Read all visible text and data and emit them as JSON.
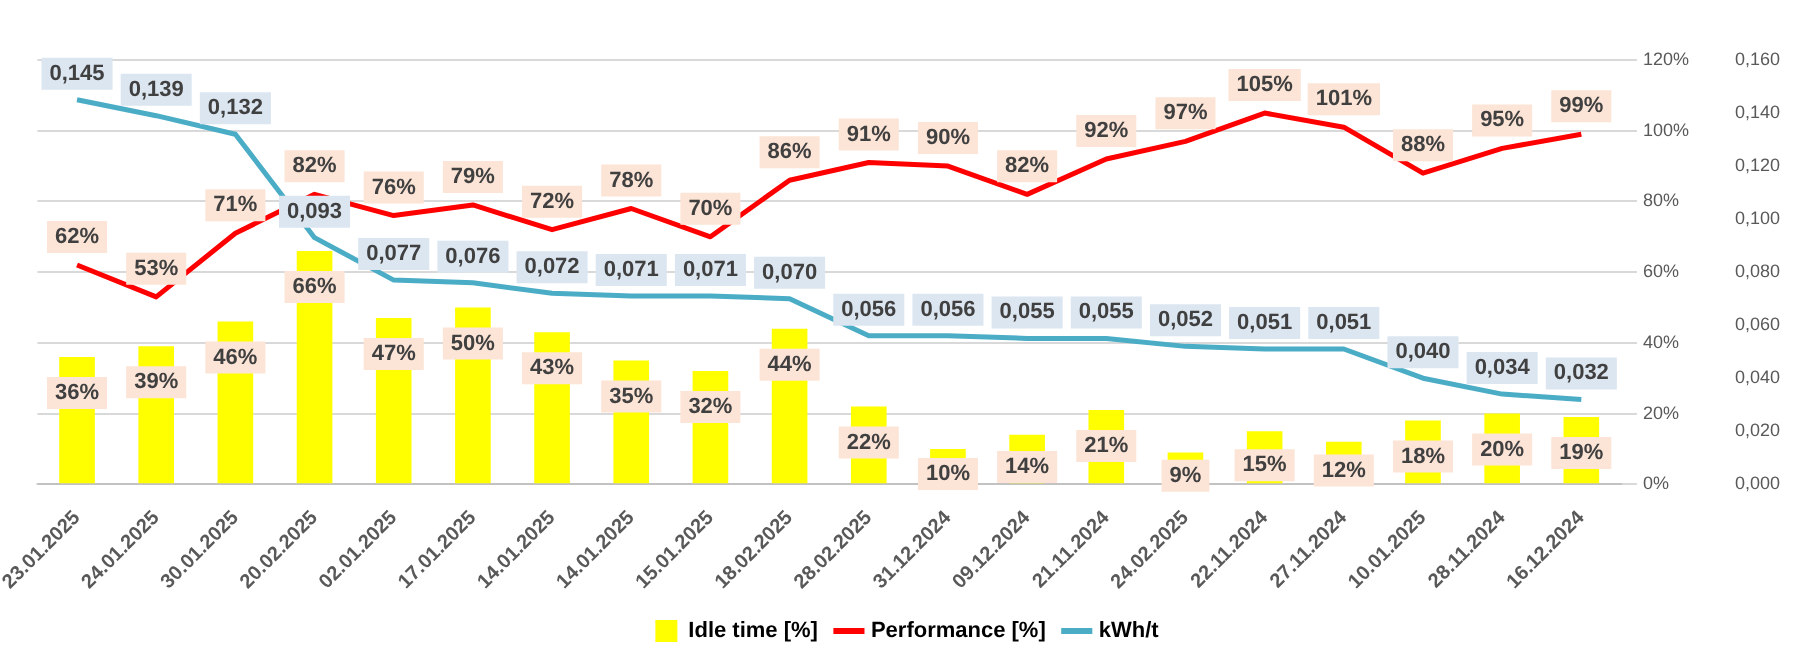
{
  "chart_data": {
    "type": "bar",
    "categories": [
      "23.01.2025",
      "24.01.2025",
      "30.01.2025",
      "20.02.2025",
      "02.01.2025",
      "17.01.2025",
      "14.01.2025",
      "14.01.2025",
      "15.01.2025",
      "18.02.2025",
      "28.02.2025",
      "31.12.2024",
      "09.12.2024",
      "21.11.2024",
      "24.02.2025",
      "22.11.2024",
      "27.11.2024",
      "10.01.2025",
      "28.11.2024",
      "16.12.2024"
    ],
    "series": [
      {
        "name": "Idle time [%]",
        "color": "#ffff00",
        "values": [
          36,
          39,
          46,
          66,
          47,
          50,
          43,
          35,
          32,
          44,
          22,
          10,
          14,
          21,
          9,
          15,
          12,
          18,
          20,
          19
        ],
        "value_labels": [
          "36%",
          "39%",
          "46%",
          "66%",
          "47%",
          "50%",
          "43%",
          "35%",
          "32%",
          "44%",
          "22%",
          "10%",
          "14%",
          "21%",
          "9%",
          "15%",
          "12%",
          "18%",
          "20%",
          "19%"
        ]
      },
      {
        "name": "Performance [%]",
        "type": "line",
        "color": "#ff0000",
        "values": [
          62,
          53,
          71,
          82,
          76,
          79,
          72,
          78,
          70,
          86,
          91,
          90,
          82,
          92,
          97,
          105,
          101,
          88,
          95,
          99
        ],
        "value_labels": [
          "62%",
          "53%",
          "71%",
          "82%",
          "76%",
          "79%",
          "72%",
          "78%",
          "70%",
          "86%",
          "91%",
          "90%",
          "82%",
          "92%",
          "97%",
          "105%",
          "101%",
          "88%",
          "95%",
          "99%"
        ]
      },
      {
        "name": "kWh/t",
        "type": "line",
        "axis": "y2",
        "color": "#4bacc6",
        "values": [
          0.145,
          0.139,
          0.132,
          0.093,
          0.077,
          0.076,
          0.072,
          0.071,
          0.071,
          0.07,
          0.056,
          0.056,
          0.055,
          0.055,
          0.052,
          0.051,
          0.051,
          0.04,
          0.034,
          0.032
        ],
        "value_labels": [
          "0,145",
          "0,139",
          "0,132",
          "0,093",
          "0,077",
          "0,076",
          "0,072",
          "0,071",
          "0,071",
          "0,070",
          "0,056",
          "0,056",
          "0,055",
          "0,055",
          "0,052",
          "0,051",
          "0,051",
          "0,040",
          "0,034",
          "0,032"
        ]
      }
    ],
    "ylim": [
      0,
      120
    ],
    "yticks": [
      {
        "value": 0,
        "label": "0%"
      },
      {
        "value": 20,
        "label": "20%"
      },
      {
        "value": 40,
        "label": "40%"
      },
      {
        "value": 60,
        "label": "60%"
      },
      {
        "value": 80,
        "label": "80%"
      },
      {
        "value": 100,
        "label": "100%"
      },
      {
        "value": 120,
        "label": "120%"
      }
    ],
    "y2lim": [
      0,
      0.16
    ],
    "y2ticks": [
      {
        "value": 0,
        "label": "0,000"
      },
      {
        "value": 0.02,
        "label": "0,020"
      },
      {
        "value": 0.04,
        "label": "0,040"
      },
      {
        "value": 0.06,
        "label": "0,060"
      },
      {
        "value": 0.08,
        "label": "0,080"
      },
      {
        "value": 0.1,
        "label": "0,100"
      },
      {
        "value": 0.12,
        "label": "0,120"
      },
      {
        "value": 0.14,
        "label": "0,140"
      },
      {
        "value": 0.16,
        "label": "0,160"
      }
    ],
    "grid": "y",
    "legend": "bottom",
    "marker": "none"
  }
}
